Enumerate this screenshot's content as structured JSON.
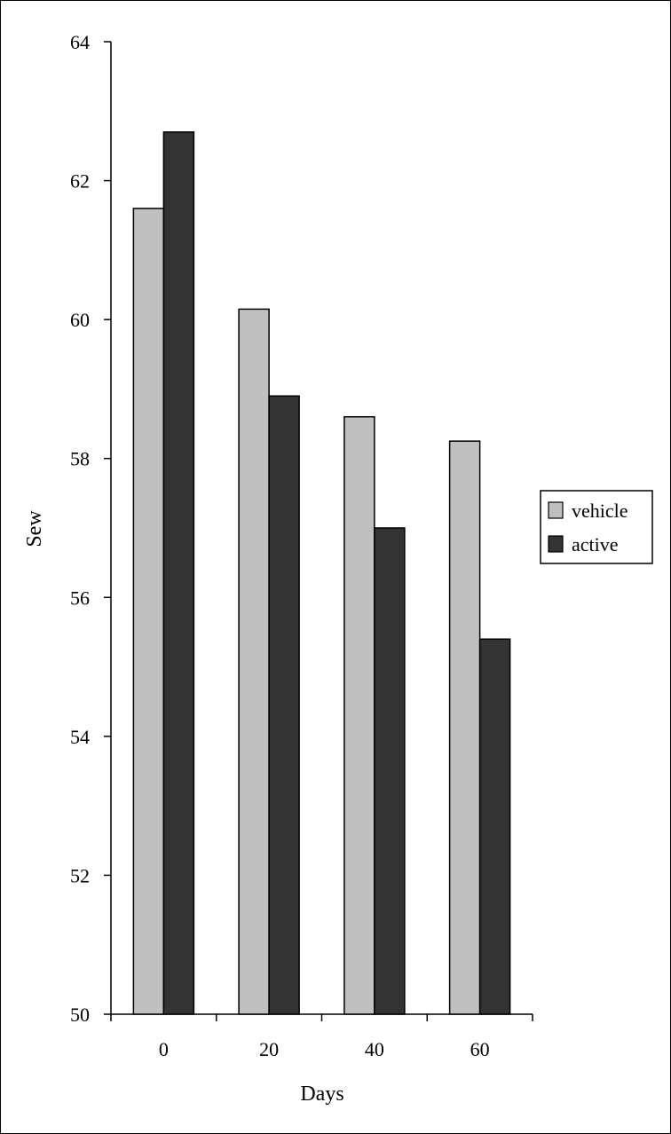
{
  "chart_data": {
    "type": "bar",
    "title": "",
    "xlabel": "Days",
    "ylabel": "Sew",
    "categories": [
      "0",
      "20",
      "40",
      "60"
    ],
    "ylim": [
      50,
      64
    ],
    "yticks": [
      "50",
      "52",
      "54",
      "56",
      "58",
      "60",
      "62",
      "64"
    ],
    "grid": false,
    "legend_position": "right",
    "series": [
      {
        "name": "vehicle",
        "color": "#c0c0c0",
        "values": [
          61.6,
          60.15,
          58.6,
          58.25
        ]
      },
      {
        "name": "active",
        "color": "#333333",
        "values": [
          62.7,
          58.9,
          57.0,
          55.4
        ]
      }
    ]
  }
}
